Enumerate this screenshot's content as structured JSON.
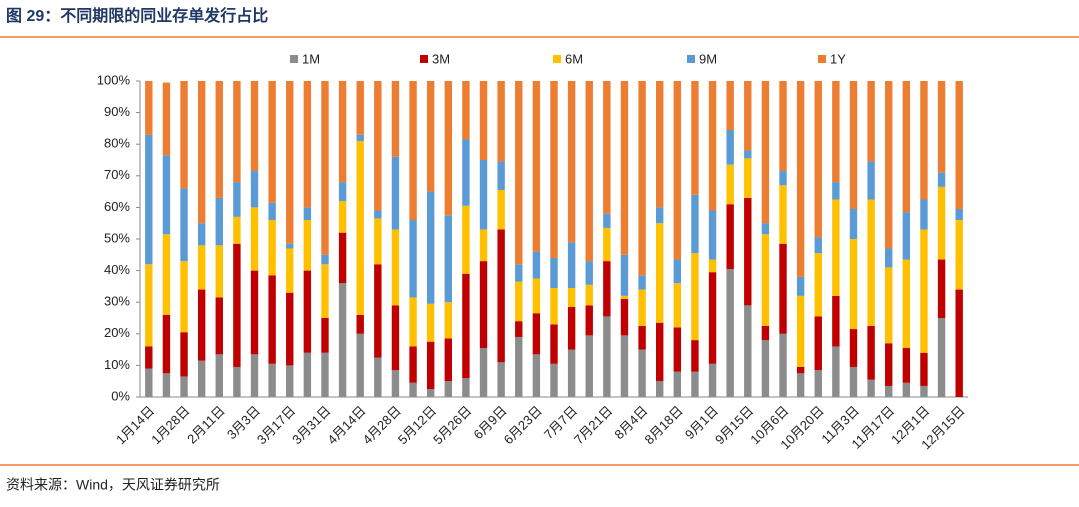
{
  "chart_data": {
    "type": "stacked_bar",
    "title": "图 29：不同期限的同业存单发行占比",
    "source": "资料来源：Wind，天风证券研究所",
    "categories": [
      "1月14日",
      null,
      "1月28日",
      null,
      "2月11日",
      null,
      "3月3日",
      null,
      "3月17日",
      null,
      "3月31日",
      null,
      "4月14日",
      null,
      "4月28日",
      null,
      "5月12日",
      null,
      "5月26日",
      null,
      "6月9日",
      null,
      "6月23日",
      null,
      "7月7日",
      null,
      "7月21日",
      null,
      "8月4日",
      null,
      "8月18日",
      null,
      "9月1日",
      null,
      "9月15日",
      null,
      "10月6日",
      null,
      "10月20日",
      null,
      "11月3日",
      null,
      "11月17日",
      null,
      "12月1日",
      null,
      "12月15日"
    ],
    "series": [
      {
        "name": "1M",
        "color": "#8c8c8c",
        "values": [
          9,
          7.5,
          6.5,
          11.5,
          13.5,
          9.5,
          13.5,
          10.5,
          10,
          14,
          14,
          36,
          20,
          12.5,
          8.5,
          4.5,
          2.5,
          5,
          6,
          15.5,
          11,
          19,
          13.5,
          10.5,
          15,
          19.5,
          25.5,
          19.5,
          15,
          5,
          8,
          8,
          10.5,
          40.5,
          29,
          18,
          20,
          7.5,
          8.5,
          16,
          9.5,
          5.5,
          3.5,
          4.5,
          3.5,
          25,
          0
        ]
      },
      {
        "name": "3M",
        "color": "#c00000",
        "values": [
          7,
          18.5,
          14,
          22.5,
          18,
          39,
          26.5,
          28,
          23,
          26,
          11,
          16,
          6,
          29.5,
          20.5,
          11.5,
          15,
          13.5,
          33,
          27.5,
          42,
          5,
          13,
          12.5,
          13.5,
          9.5,
          17.5,
          11.5,
          7.5,
          18.5,
          14,
          10,
          29,
          20.5,
          34,
          4.5,
          28.5,
          2,
          17,
          16,
          12,
          17,
          13.5,
          11,
          10.5,
          18.5,
          34
        ]
      },
      {
        "name": "6M",
        "color": "#ffc000",
        "values": [
          26,
          25.5,
          22.5,
          14,
          16.5,
          8.5,
          20,
          17.5,
          14,
          16,
          17,
          10,
          55,
          14.5,
          24,
          15.5,
          12,
          11.5,
          21.5,
          10,
          12.5,
          12.5,
          11,
          11.5,
          6,
          6.5,
          10.5,
          1,
          11.5,
          31.5,
          14,
          27.5,
          4,
          12.5,
          12.5,
          29,
          18.5,
          22.5,
          20,
          30.5,
          28.5,
          40,
          24,
          28,
          39,
          23,
          22
        ]
      },
      {
        "name": "9M",
        "color": "#5b9bd5",
        "values": [
          41,
          25,
          23,
          7,
          15,
          11,
          11.5,
          5.5,
          1.5,
          4,
          3,
          6,
          2,
          2.5,
          23,
          24.5,
          35.5,
          27.5,
          21,
          22,
          9,
          5.5,
          8.5,
          9.5,
          14.5,
          7.5,
          4.5,
          13,
          4.5,
          5,
          7.5,
          18.5,
          15.5,
          11,
          2.5,
          3.5,
          4.5,
          6,
          5,
          5.5,
          9.5,
          12,
          6,
          15,
          9.5,
          4.5,
          3.5
        ]
      },
      {
        "name": "1Y",
        "color": "#ed7d31",
        "values": [
          17,
          23,
          34,
          45,
          37,
          32,
          28.5,
          38.5,
          51.5,
          40,
          55,
          32,
          17,
          41,
          24,
          44,
          35,
          42.5,
          18.5,
          25,
          25.5,
          58,
          54,
          56,
          51,
          57,
          42,
          55,
          61.5,
          40,
          56.5,
          36,
          41,
          15.5,
          22,
          45,
          28.5,
          62,
          49.5,
          32,
          40.5,
          25.5,
          53,
          41.5,
          37.5,
          29,
          40.5
        ]
      }
    ],
    "ylim": [
      0,
      100
    ],
    "yticks": [
      {
        "value": 0,
        "label": "0%"
      },
      {
        "value": 10,
        "label": "10%"
      },
      {
        "value": 20,
        "label": "20%"
      },
      {
        "value": 30,
        "label": "30%"
      },
      {
        "value": 40,
        "label": "40%"
      },
      {
        "value": 50,
        "label": "50%"
      },
      {
        "value": 60,
        "label": "60%"
      },
      {
        "value": 70,
        "label": "70%"
      },
      {
        "value": 80,
        "label": "80%"
      },
      {
        "value": 90,
        "label": "90%"
      },
      {
        "value": 100,
        "label": "100%"
      }
    ],
    "legend": "top"
  }
}
